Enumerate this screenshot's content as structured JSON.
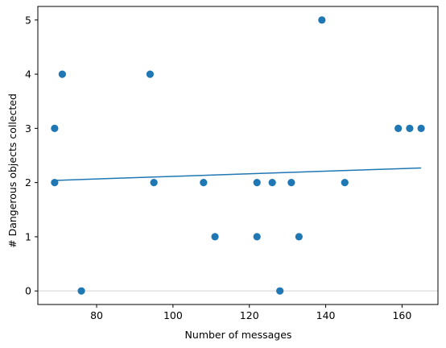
{
  "chart_data": {
    "type": "scatter",
    "title": "",
    "xlabel": "Number of messages",
    "ylabel": "# Dangerous objects collected",
    "xlim": [
      64.6,
      169.4
    ],
    "ylim": [
      -0.25,
      5.25
    ],
    "xticks": [
      80,
      100,
      120,
      140,
      160
    ],
    "yticks": [
      0,
      1,
      2,
      3,
      4,
      5
    ],
    "grid": false,
    "reference_line_y": 0,
    "points": [
      {
        "x": 69,
        "y": 3
      },
      {
        "x": 69,
        "y": 2
      },
      {
        "x": 71,
        "y": 4
      },
      {
        "x": 76,
        "y": 0
      },
      {
        "x": 94,
        "y": 4
      },
      {
        "x": 95,
        "y": 2
      },
      {
        "x": 108,
        "y": 2
      },
      {
        "x": 111,
        "y": 1
      },
      {
        "x": 122,
        "y": 2
      },
      {
        "x": 122,
        "y": 1
      },
      {
        "x": 126,
        "y": 2
      },
      {
        "x": 128,
        "y": 0
      },
      {
        "x": 131,
        "y": 2
      },
      {
        "x": 133,
        "y": 1
      },
      {
        "x": 139,
        "y": 5
      },
      {
        "x": 145,
        "y": 2
      },
      {
        "x": 159,
        "y": 3
      },
      {
        "x": 162,
        "y": 3
      },
      {
        "x": 165,
        "y": 3
      }
    ],
    "trend_line": {
      "x": [
        69,
        165
      ],
      "y": [
        2.04,
        2.27
      ]
    },
    "colors": {
      "points": "#1f77b4",
      "trend_line": "#1f77b4",
      "reference_line": "#d3d3d3",
      "axes": "#000000"
    }
  }
}
